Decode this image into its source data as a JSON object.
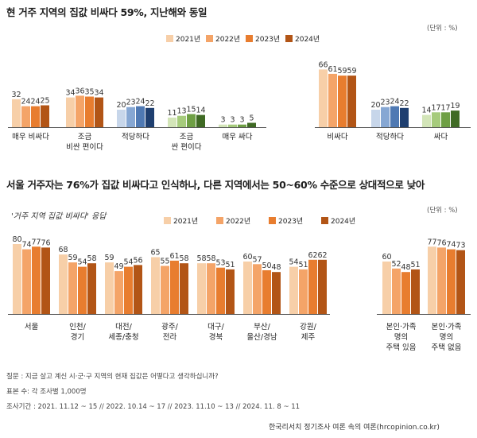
{
  "chart1_title": "현 거주 지역의 집값 비싸다 59%, 지난해와 동일",
  "chart2_title": "서울 거주자는 76%가 집값 비싸다고 인식하나, 다른 지역에서는 50~60% 수준으로 상대적으로 낮아",
  "chart2_subtitle": "'거주 지역 집값 비싸다' 응답",
  "unit_label": "(단위 : %)",
  "note_question": "질문 : 지금 살고 계신 시·군·구 지역의 현재 집값은 어떻다고 생각하십니까?",
  "note_sample": "표본 수: 각 조사별 1,000명",
  "note_period": "조사기간 : 2021. 11.12 ~ 15 // 2022. 10.14 ~ 17 // 2023. 11.10 ~ 13 // 2024. 11. 8 ~ 11",
  "source": "한국리서치 정기조사 여론 속의 여론(hrcopinion.co.kr)",
  "legend": [
    "2021년",
    "2022년",
    "2023년",
    "2024년"
  ],
  "colors": {
    "orange": [
      "#f7cfa8",
      "#f4a468",
      "#e87d2f",
      "#b25516"
    ],
    "blue": [
      "#c7d6ea",
      "#86a7d3",
      "#4f79b3",
      "#1f3f70"
    ],
    "green": [
      "#d3e5b8",
      "#a6cb7c",
      "#6e9f44",
      "#3f6a24"
    ],
    "axis": "#555555"
  },
  "chart_data": [
    {
      "type": "bar",
      "title": "현 거주 지역의 집값 비싸다 59%, 지난해와 동일",
      "series_names": [
        "2021년",
        "2022년",
        "2023년",
        "2024년"
      ],
      "groups": [
        {
          "label": [
            "매우 비싸다"
          ],
          "values": [
            32,
            24,
            24,
            25
          ],
          "palette": "orange"
        },
        {
          "label": [
            "조금",
            "비싼 편이다"
          ],
          "values": [
            34,
            36,
            35,
            34
          ],
          "palette": "orange"
        },
        {
          "label": [
            "적당하다"
          ],
          "values": [
            20,
            23,
            24,
            22
          ],
          "palette": "blue"
        },
        {
          "label": [
            "조금",
            "싼 편이다"
          ],
          "values": [
            11,
            13,
            15,
            14
          ],
          "palette": "green"
        },
        {
          "label": [
            "매우 싸다"
          ],
          "values": [
            3,
            3,
            3,
            5
          ],
          "palette": "green"
        },
        {
          "label": [
            "비싸다"
          ],
          "values": [
            66,
            61,
            59,
            59
          ],
          "palette": "orange"
        },
        {
          "label": [
            "적당하다"
          ],
          "values": [
            20,
            23,
            24,
            22
          ],
          "palette": "blue"
        },
        {
          "label": [
            "싸다"
          ],
          "values": [
            14,
            17,
            17,
            19
          ],
          "palette": "green"
        }
      ],
      "ylim": [
        0,
        70
      ]
    },
    {
      "type": "bar",
      "title": "서울 거주자는 76%가 집값 비싸다고 인식하나, 다른 지역에서는 50~60% 수준으로 상대적으로 낮아",
      "series_names": [
        "2021년",
        "2022년",
        "2023년",
        "2024년"
      ],
      "groups": [
        {
          "label": [
            "서울"
          ],
          "values": [
            80,
            74,
            77,
            76
          ],
          "palette": "orange"
        },
        {
          "label": [
            "인천/",
            "경기"
          ],
          "values": [
            68,
            59,
            54,
            58
          ],
          "palette": "orange"
        },
        {
          "label": [
            "대전/",
            "세종/충청"
          ],
          "values": [
            59,
            49,
            54,
            56
          ],
          "palette": "orange"
        },
        {
          "label": [
            "광주/",
            "전라"
          ],
          "values": [
            65,
            55,
            61,
            58
          ],
          "palette": "orange"
        },
        {
          "label": [
            "대구/",
            "경북"
          ],
          "values": [
            58,
            58,
            53,
            51
          ],
          "palette": "orange"
        },
        {
          "label": [
            "부산/",
            "울산/경남"
          ],
          "values": [
            60,
            57,
            50,
            48
          ],
          "palette": "orange"
        },
        {
          "label": [
            "강원/",
            "제주"
          ],
          "values": [
            54,
            51,
            62,
            62
          ],
          "palette": "orange"
        },
        {
          "label": [
            "본인·가족",
            "명의",
            "주택 있음"
          ],
          "values": [
            60,
            52,
            48,
            51
          ],
          "palette": "orange"
        },
        {
          "label": [
            "본인·가족",
            "명의",
            "주택 없음"
          ],
          "values": [
            77,
            76,
            74,
            73
          ],
          "palette": "orange"
        }
      ],
      "ylim": [
        0,
        90
      ]
    }
  ]
}
